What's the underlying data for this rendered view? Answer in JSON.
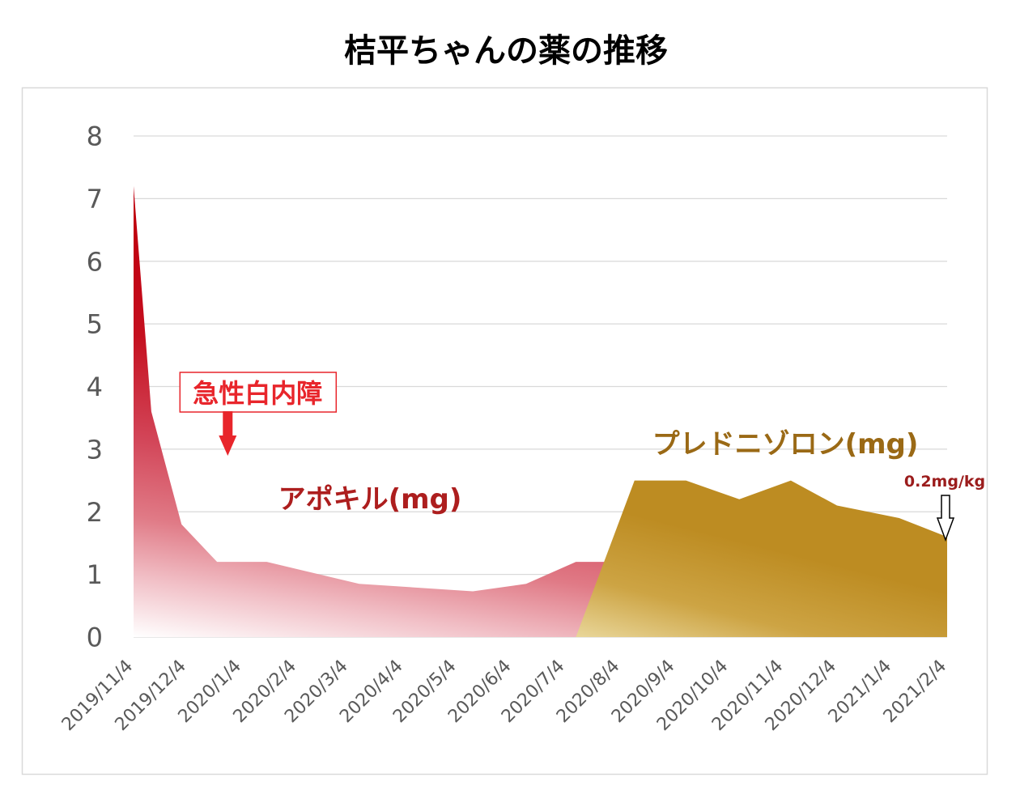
{
  "chart_data": {
    "type": "area",
    "title": "桔平ちゃんの薬の推移",
    "x_scale": "date",
    "x_ticks": [
      "2019/11/4",
      "2019/12/4",
      "2020/1/4",
      "2020/2/4",
      "2020/3/4",
      "2020/4/4",
      "2020/5/4",
      "2020/6/4",
      "2020/7/4",
      "2020/8/4",
      "2020/9/4",
      "2020/10/4",
      "2020/11/4",
      "2020/12/4",
      "2021/1/4",
      "2021/2/4"
    ],
    "xlim": [
      "2019/11/4",
      "2021/2/4"
    ],
    "ylim": [
      0,
      8
    ],
    "y_ticks": [
      0,
      1,
      2,
      3,
      4,
      5,
      6,
      7,
      8
    ],
    "grid": true,
    "series": [
      {
        "name": "アポキル(mg)",
        "color": "#c00010",
        "points": [
          {
            "x": "2019/11/4",
            "y": 7.2
          },
          {
            "x": "2019/11/14",
            "y": 3.6
          },
          {
            "x": "2019/12/1",
            "y": 1.8
          },
          {
            "x": "2019/12/21",
            "y": 1.2
          },
          {
            "x": "2020/1/18",
            "y": 1.2
          },
          {
            "x": "2020/3/10",
            "y": 0.85
          },
          {
            "x": "2020/5/13",
            "y": 0.73
          },
          {
            "x": "2020/6/12",
            "y": 0.85
          },
          {
            "x": "2020/7/10",
            "y": 1.2
          },
          {
            "x": "2020/8/4",
            "y": 1.2
          }
        ]
      },
      {
        "name": "プレドニゾロン(mg)",
        "color": "#bd8c22",
        "points": [
          {
            "x": "2020/7/10",
            "y": 0
          },
          {
            "x": "2020/8/12",
            "y": 2.5
          },
          {
            "x": "2020/9/10",
            "y": 2.5
          },
          {
            "x": "2020/10/10",
            "y": 2.2
          },
          {
            "x": "2020/11/8",
            "y": 2.5
          },
          {
            "x": "2020/12/4",
            "y": 2.1
          },
          {
            "x": "2021/1/8",
            "y": 1.9
          },
          {
            "x": "2021/2/4",
            "y": 1.6
          }
        ]
      }
    ],
    "annotations": [
      {
        "text": "急性白内障",
        "x": "2019/12/27",
        "color": "#e8252b"
      },
      {
        "text": "0.2mg/kg",
        "x": "2021/2/4",
        "color": "#9b1c1c"
      }
    ]
  }
}
